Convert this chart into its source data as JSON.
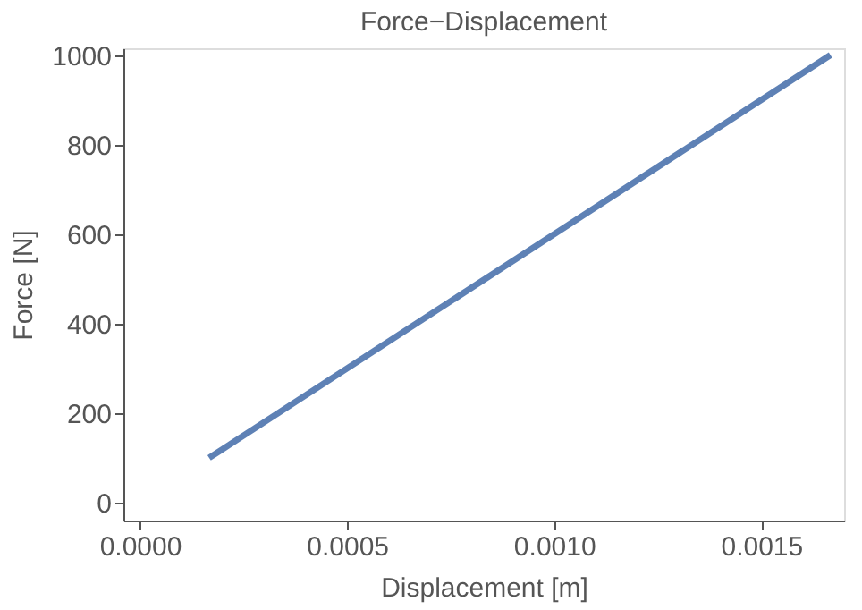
{
  "chart_data": {
    "type": "line",
    "title": "Force−Displacement",
    "xlabel": "Displacement [m]",
    "ylabel": "Force [N]",
    "series": [
      {
        "color": "#5e81b5",
        "x": [
          0.000167,
          0.001667
        ],
        "values": [
          100,
          1000
        ]
      }
    ],
    "xlim": [
      -4e-05,
      0.0017
    ],
    "ylim": [
      -40,
      1015
    ],
    "xticks": [
      {
        "value": 0,
        "label": "0.0000"
      },
      {
        "value": 0.0005,
        "label": "0.0005"
      },
      {
        "value": 0.001,
        "label": "0.0010"
      },
      {
        "value": 0.0015,
        "label": "0.0015"
      }
    ],
    "yticks": [
      0,
      200,
      400,
      600,
      800,
      1000
    ],
    "grid": false,
    "marker": "none",
    "line_style": "solid"
  }
}
